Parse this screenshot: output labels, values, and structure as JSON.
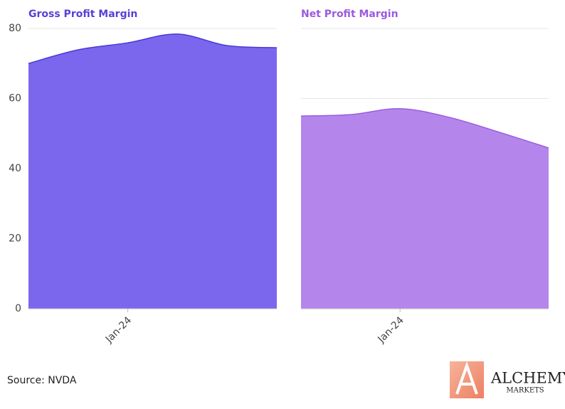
{
  "chart_data": [
    {
      "type": "area",
      "title": "Gross Profit Margin",
      "title_color": "#5a3fd6",
      "categories": [
        null,
        null,
        "Jan-24",
        null,
        null,
        null
      ],
      "values": [
        70.0,
        73.9,
        75.9,
        78.4,
        75.1,
        74.5
      ],
      "color": "#7a67ee",
      "line_color": "#4a3ad2",
      "ylim": [
        0,
        80
      ],
      "yticks": [
        0,
        20,
        40,
        60,
        80
      ],
      "grid": true
    },
    {
      "type": "area",
      "title": "Net Profit Margin",
      "title_color": "#9b59e0",
      "categories": [
        null,
        null,
        "Jan-24",
        null,
        null,
        null
      ],
      "values": [
        55.0,
        55.4,
        57.1,
        54.6,
        50.4,
        45.9
      ],
      "color": "#b486ec",
      "line_color": "#9a5ce0",
      "ylim": [
        0,
        80
      ],
      "yticks": [
        0,
        20,
        40,
        60,
        80
      ],
      "grid": true
    }
  ],
  "source": "Source: NVDA",
  "logo": {
    "name": "ALCHEMY",
    "sub": "MARKETS"
  }
}
